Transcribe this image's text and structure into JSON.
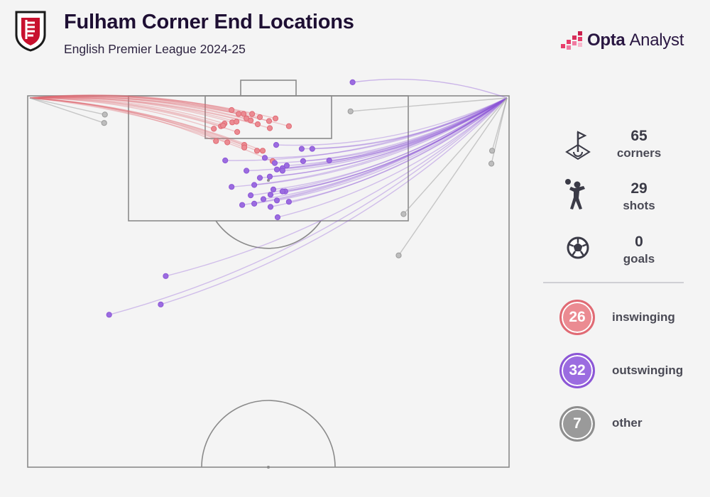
{
  "header": {
    "title": "Fulham Corner End Locations",
    "subtitle": "English Premier League 2024-25"
  },
  "brand": {
    "name": "Opta",
    "sub": "Analyst"
  },
  "stats": [
    {
      "icon": "corner-flag-icon",
      "value": "65",
      "label": "corners"
    },
    {
      "icon": "header-player-icon",
      "value": "29",
      "label": "shots"
    },
    {
      "icon": "football-icon",
      "value": "0",
      "label": "goals"
    }
  ],
  "legend": [
    {
      "count": "26",
      "label": "inswinging",
      "color": "#e06a74",
      "fill": "#eb8b92"
    },
    {
      "count": "32",
      "label": "outswinging",
      "color": "#8c56d6",
      "fill": "#9b6ce0"
    },
    {
      "count": "7",
      "label": "other",
      "color": "#8e8e8e",
      "fill": "#9a9a9a"
    }
  ],
  "colors": {
    "inswinging": "#e06a74",
    "outswinging": "#8c56d6",
    "other": "#a6a6a6",
    "pitch_lines": "#8a8a8a"
  },
  "chart_data": {
    "type": "scatter",
    "title": "Fulham Corner End Locations",
    "subtitle": "English Premier League 2024-25",
    "corner_origins": {
      "left": [
        0,
        0
      ],
      "right": [
        68,
        0
      ]
    },
    "series": [
      {
        "name": "inswinging",
        "origin": "left",
        "points": [
          [
            28.8,
            2.2
          ],
          [
            29.8,
            2.8
          ],
          [
            30.5,
            2.8
          ],
          [
            31.7,
            2.8
          ],
          [
            30.9,
            3.5
          ],
          [
            32.8,
            3.3
          ],
          [
            31.5,
            3.8
          ],
          [
            35.0,
            3.5
          ],
          [
            34.1,
            3.9
          ],
          [
            28.9,
            4.1
          ],
          [
            29.5,
            4.0
          ],
          [
            27.8,
            4.3
          ],
          [
            27.3,
            4.7
          ],
          [
            26.3,
            5.1
          ],
          [
            27.6,
            4.6
          ],
          [
            32.5,
            4.4
          ],
          [
            36.9,
            4.7
          ],
          [
            34.2,
            5.0
          ],
          [
            29.6,
            5.6
          ],
          [
            26.6,
            7.0
          ],
          [
            28.2,
            7.2
          ],
          [
            30.6,
            7.6
          ],
          [
            32.4,
            8.5
          ],
          [
            33.2,
            8.5
          ],
          [
            34.6,
            10.1
          ],
          [
            30.6,
            8.0
          ]
        ]
      },
      {
        "name": "outswinging",
        "origin": "right",
        "points": [
          [
            35.1,
            7.6
          ],
          [
            38.7,
            8.2
          ],
          [
            40.2,
            8.2
          ],
          [
            27.9,
            10.0
          ],
          [
            33.5,
            9.6
          ],
          [
            34.9,
            10.4
          ],
          [
            36.0,
            11.2
          ],
          [
            38.9,
            10.1
          ],
          [
            42.6,
            10.0
          ],
          [
            36.6,
            10.8
          ],
          [
            34.2,
            12.5
          ],
          [
            35.2,
            11.4
          ],
          [
            30.9,
            11.6
          ],
          [
            32.8,
            12.7
          ],
          [
            36.0,
            11.6
          ],
          [
            28.8,
            14.1
          ],
          [
            32.0,
            13.8
          ],
          [
            34.7,
            14.5
          ],
          [
            36.4,
            14.8
          ],
          [
            31.5,
            15.4
          ],
          [
            34.3,
            15.3
          ],
          [
            36.0,
            14.8
          ],
          [
            30.3,
            16.9
          ],
          [
            33.3,
            16.0
          ],
          [
            35.2,
            16.2
          ],
          [
            34.3,
            17.2
          ],
          [
            36.9,
            16.4
          ],
          [
            35.3,
            18.8
          ],
          [
            32.0,
            16.7
          ],
          [
            19.5,
            27.9
          ],
          [
            18.8,
            32.3
          ],
          [
            11.5,
            33.9
          ]
        ]
      },
      {
        "name": "other",
        "origin": "mixed",
        "points": [
          [
            10.9,
            2.9,
            "left"
          ],
          [
            10.8,
            4.2,
            "left"
          ],
          [
            45.6,
            2.4,
            "right"
          ],
          [
            65.6,
            8.5,
            "right"
          ],
          [
            65.5,
            10.5,
            "right"
          ],
          [
            53.1,
            18.3,
            "right"
          ],
          [
            52.4,
            24.7,
            "right"
          ]
        ],
        "special": {
          "point": [
            45.9,
            -2.1
          ],
          "origin": "right"
        }
      }
    ],
    "xlim": [
      0,
      68
    ],
    "ylim": [
      0,
      57.5
    ]
  }
}
